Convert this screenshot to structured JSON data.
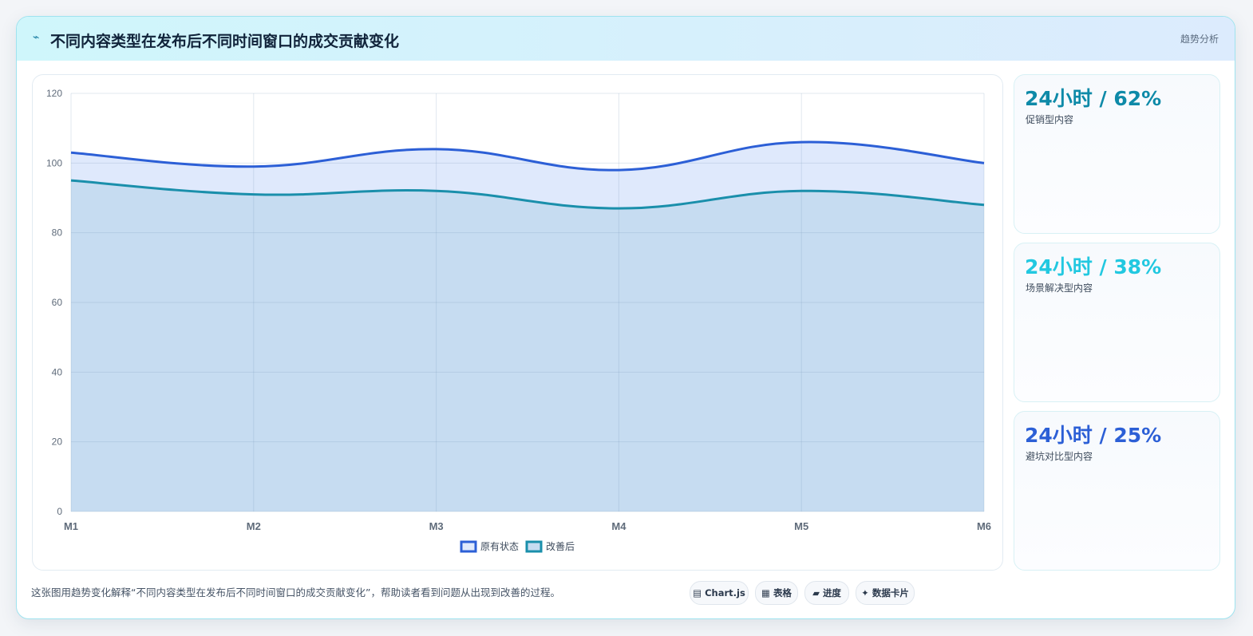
{
  "header": {
    "icon": "⌁",
    "title": "不同内容类型在发布后不同时间窗口的成交贡献变化",
    "tag": "趋势分析"
  },
  "stats": [
    {
      "value": "24小时 / 62%",
      "label": "促销型内容",
      "color": "#0e8aa8"
    },
    {
      "value": "24小时 / 38%",
      "label": "场景解决型内容",
      "color": "#22c8e0"
    },
    {
      "value": "24小时 / 25%",
      "label": "避坑对比型内容",
      "color": "#2c5fd6"
    }
  ],
  "footer": {
    "description": "这张图用趋势变化解释“不同内容类型在发布后不同时间窗口的成交贡献变化”，帮助读者看到问题从出现到改善的过程。",
    "chips": [
      {
        "icon": "▤",
        "label": "Chart.js"
      },
      {
        "icon": "▦",
        "label": "表格"
      },
      {
        "icon": "▰",
        "label": "进度"
      },
      {
        "icon": "✦",
        "label": "数据卡片"
      }
    ]
  },
  "chart_data": {
    "type": "area",
    "categories": [
      "M1",
      "M2",
      "M3",
      "M4",
      "M5",
      "M6"
    ],
    "ylim": [
      0,
      120
    ],
    "yticks": [
      0,
      20,
      40,
      60,
      80,
      100,
      120
    ],
    "grid": true,
    "legend_position": "bottom",
    "series": [
      {
        "name": "原有状态",
        "values": [
          103,
          99,
          104,
          98,
          106,
          100
        ],
        "color": "#2c5fd6",
        "fill": "#dfe9fc"
      },
      {
        "name": "改善后",
        "values": [
          95,
          91,
          92,
          87,
          92,
          88
        ],
        "color": "#1a8fab",
        "fill": "#c6dcf1"
      }
    ]
  }
}
